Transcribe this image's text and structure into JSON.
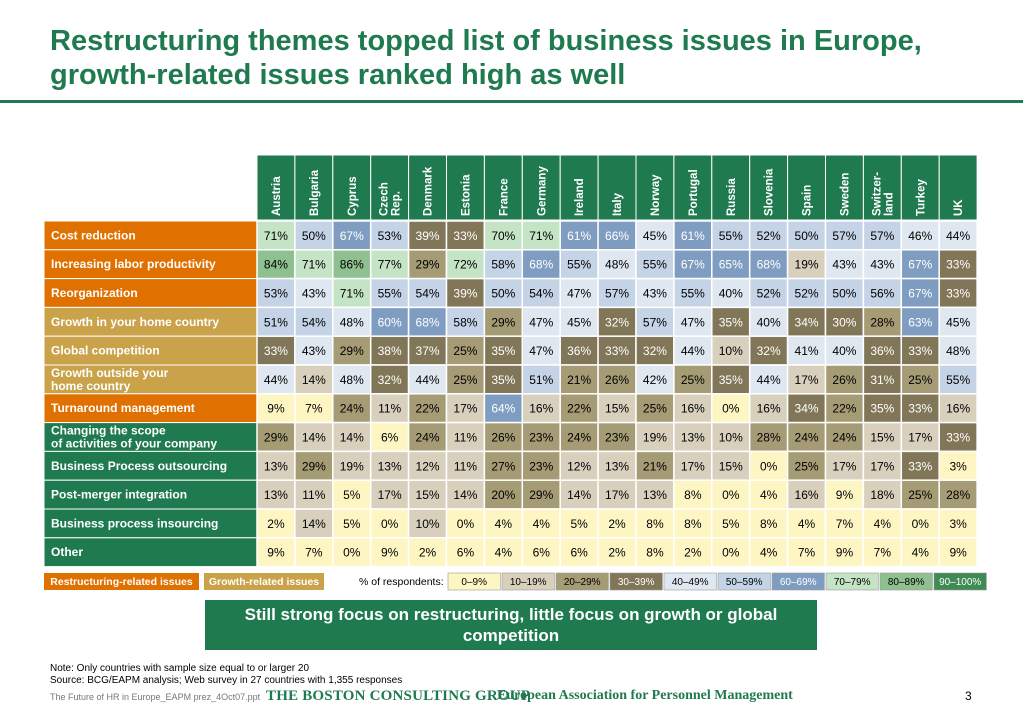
{
  "title": "Restructuring themes topped list of business issues in Europe, growth-related issues ranked high as well",
  "banner": "Still strong focus on restructuring, little focus on growth or global competition",
  "notes": {
    "note": "Note: Only countries with sample size equal to or larger 20",
    "source": "Source: BCG/EAPM analysis; Web survey in 27 countries with 1,355 responses"
  },
  "footer": {
    "file": "The Future of HR in Europe_EAPM prez_4Oct07.ppt",
    "bcg": "THE BOSTON CONSULTING GROUP",
    "eapm": "European Association for Personnel Management",
    "page": "3"
  },
  "colors": {
    "restructuring": "#e07000",
    "growth": "#c9a24a",
    "other": "#1f7a4f",
    "green": "#1f7a4f"
  },
  "legend": {
    "restructuring_label": "Restructuring-related issues",
    "growth_label": "Growth-related issues",
    "respondents_label": "% of respondents:",
    "buckets": [
      {
        "label": "0–9%",
        "bg": "#fdf6c3",
        "fg": "#000000"
      },
      {
        "label": "10–19%",
        "bg": "#d8d0bd",
        "fg": "#000000"
      },
      {
        "label": "20–29%",
        "bg": "#a59b74",
        "fg": "#000000"
      },
      {
        "label": "30–39%",
        "bg": "#817657",
        "fg": "#ffffff"
      },
      {
        "label": "40–49%",
        "bg": "#dfe7f1",
        "fg": "#000000"
      },
      {
        "label": "50–59%",
        "bg": "#c4d4e6",
        "fg": "#000000"
      },
      {
        "label": "60–69%",
        "bg": "#7f9dc1",
        "fg": "#ffffff"
      },
      {
        "label": "70–79%",
        "bg": "#c5e3c5",
        "fg": "#000000"
      },
      {
        "label": "80–89%",
        "bg": "#8fc08f",
        "fg": "#000000"
      },
      {
        "label": "90–100%",
        "bg": "#3f8a55",
        "fg": "#ffffff"
      }
    ]
  },
  "chart_data": {
    "type": "heatmap",
    "columns": [
      "Austria",
      "Bulgaria",
      "Cyprus",
      "Czech Rep.",
      "Denmark",
      "Estonia",
      "France",
      "Germany",
      "Ireland",
      "Italy",
      "Norway",
      "Portugal",
      "Russia",
      "Slovenia",
      "Spain",
      "Sweden",
      "Switzer-land",
      "Turkey",
      "UK"
    ],
    "column_lines": [
      [
        "Austria"
      ],
      [
        "Bulgaria"
      ],
      [
        "Cyprus"
      ],
      [
        "Czech",
        "Rep."
      ],
      [
        "Denmark"
      ],
      [
        "Estonia"
      ],
      [
        "France"
      ],
      [
        "Germany"
      ],
      [
        "Ireland"
      ],
      [
        "Italy"
      ],
      [
        "Norway"
      ],
      [
        "Portugal"
      ],
      [
        "Russia"
      ],
      [
        "Slovenia"
      ],
      [
        "Spain"
      ],
      [
        "Sweden"
      ],
      [
        "Switzer-",
        "land"
      ],
      [
        "Turkey"
      ],
      [
        "UK"
      ]
    ],
    "rows": [
      {
        "label": [
          "Cost reduction"
        ],
        "group": "restructuring",
        "values": [
          71,
          50,
          67,
          53,
          39,
          33,
          70,
          71,
          61,
          66,
          45,
          61,
          55,
          52,
          50,
          57,
          57,
          46,
          44
        ]
      },
      {
        "label": [
          "Increasing labor productivity"
        ],
        "group": "restructuring",
        "values": [
          84,
          71,
          86,
          77,
          29,
          72,
          58,
          68,
          55,
          48,
          55,
          67,
          65,
          68,
          19,
          43,
          43,
          67,
          33
        ]
      },
      {
        "label": [
          "Reorganization"
        ],
        "group": "restructuring",
        "values": [
          53,
          43,
          71,
          55,
          54,
          39,
          50,
          54,
          47,
          57,
          43,
          55,
          40,
          52,
          52,
          50,
          56,
          67,
          33
        ]
      },
      {
        "label": [
          "Growth in your home country"
        ],
        "group": "growth",
        "values": [
          51,
          54,
          48,
          60,
          68,
          58,
          29,
          47,
          45,
          32,
          57,
          47,
          35,
          40,
          34,
          30,
          28,
          63,
          45
        ]
      },
      {
        "label": [
          "Global competition"
        ],
        "group": "growth",
        "values": [
          33,
          43,
          29,
          38,
          37,
          25,
          35,
          47,
          36,
          33,
          32,
          44,
          10,
          32,
          41,
          40,
          36,
          33,
          48
        ]
      },
      {
        "label": [
          "Growth outside your",
          "home country"
        ],
        "group": "growth",
        "values": [
          44,
          14,
          48,
          32,
          44,
          25,
          35,
          51,
          21,
          26,
          42,
          25,
          35,
          44,
          17,
          26,
          31,
          25,
          55
        ]
      },
      {
        "label": [
          "Turnaround management"
        ],
        "group": "restructuring",
        "values": [
          9,
          7,
          24,
          11,
          22,
          17,
          64,
          16,
          22,
          15,
          25,
          16,
          0,
          16,
          34,
          22,
          35,
          33,
          16
        ]
      },
      {
        "label": [
          "Changing the scope",
          "of activities of your company"
        ],
        "group": "other",
        "values": [
          29,
          14,
          14,
          6,
          24,
          11,
          26,
          23,
          24,
          23,
          19,
          13,
          10,
          28,
          24,
          24,
          15,
          17,
          33
        ]
      },
      {
        "label": [
          "Business Process outsourcing"
        ],
        "group": "other",
        "values": [
          13,
          29,
          19,
          13,
          12,
          11,
          27,
          23,
          12,
          13,
          21,
          17,
          15,
          0,
          25,
          17,
          17,
          33,
          3
        ]
      },
      {
        "label": [
          "Post-merger integration"
        ],
        "group": "other",
        "values": [
          13,
          11,
          5,
          17,
          15,
          14,
          20,
          29,
          14,
          17,
          13,
          8,
          0,
          4,
          16,
          9,
          18,
          25,
          28
        ]
      },
      {
        "label": [
          "Business process insourcing"
        ],
        "group": "other",
        "values": [
          2,
          14,
          5,
          0,
          10,
          0,
          4,
          4,
          5,
          2,
          8,
          8,
          5,
          8,
          4,
          7,
          4,
          0,
          3
        ]
      },
      {
        "label": [
          "Other"
        ],
        "group": "other",
        "values": [
          9,
          7,
          0,
          9,
          2,
          6,
          4,
          6,
          6,
          2,
          8,
          2,
          0,
          4,
          7,
          9,
          7,
          4,
          9
        ]
      }
    ],
    "unit": "%"
  }
}
